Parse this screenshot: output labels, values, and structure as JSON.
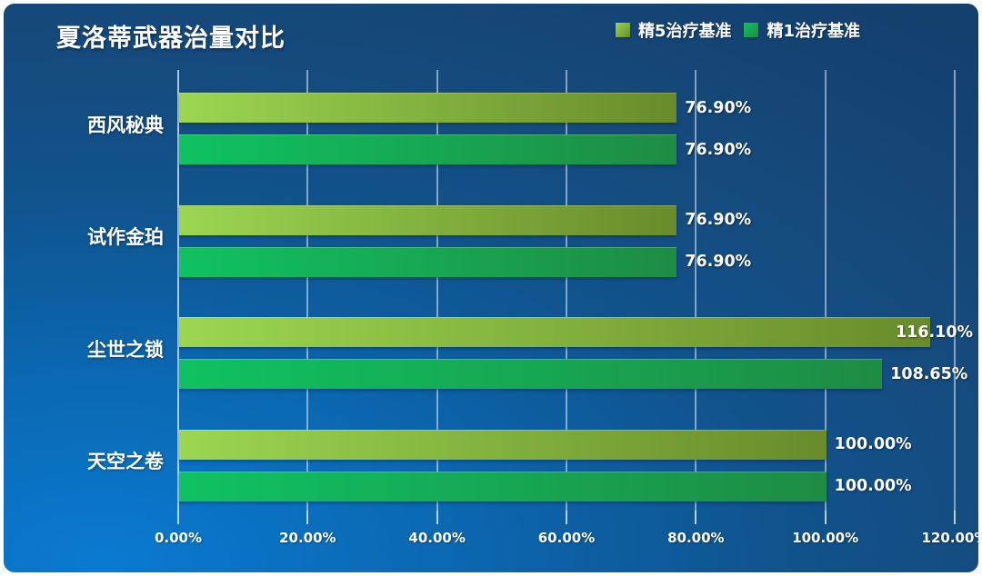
{
  "title": "夏洛蒂武器治量对比",
  "colors": {
    "background_bright": "#0a7ad1",
    "background_mid": "#0d5c9e",
    "background_dark": "#133f6c",
    "frame": "#ffffff",
    "gridline": "#deeefc",
    "text": "#ffffff",
    "series5_start": "#9bd651",
    "series5_end": "#698b2b",
    "series1_start": "#0fc261",
    "series1_end": "#1e8c43"
  },
  "chart_data": {
    "type": "bar",
    "orientation": "horizontal",
    "title": "夏洛蒂武器治量对比",
    "categories": [
      "西风秘典",
      "试作金珀",
      "尘世之锁",
      "天空之卷"
    ],
    "series": [
      {
        "name": "精5治疗基准",
        "values": [
          76.9,
          76.9,
          116.1,
          100.0
        ],
        "data_labels": [
          "76.90%",
          "76.90%",
          "116.10%",
          "100.00%"
        ],
        "color_start": "#9bd651",
        "color_end": "#698b2b"
      },
      {
        "name": "精1治疗基准",
        "values": [
          76.9,
          76.9,
          108.65,
          100.0
        ],
        "data_labels": [
          "76.90%",
          "76.90%",
          "108.65%",
          "100.00%"
        ],
        "color_start": "#0fc261",
        "color_end": "#1e8c43"
      }
    ],
    "x_axis": {
      "tick_labels": [
        "0.00%",
        "20.00%",
        "40.00%",
        "60.00%",
        "80.00%",
        "100.00%",
        "120.00%"
      ],
      "tick_values": [
        0,
        20,
        40,
        60,
        80,
        100,
        120
      ],
      "min": 0,
      "max": 120
    },
    "xlabel": "",
    "ylabel": "",
    "legend_position": "top-right",
    "grid": "vertical"
  }
}
